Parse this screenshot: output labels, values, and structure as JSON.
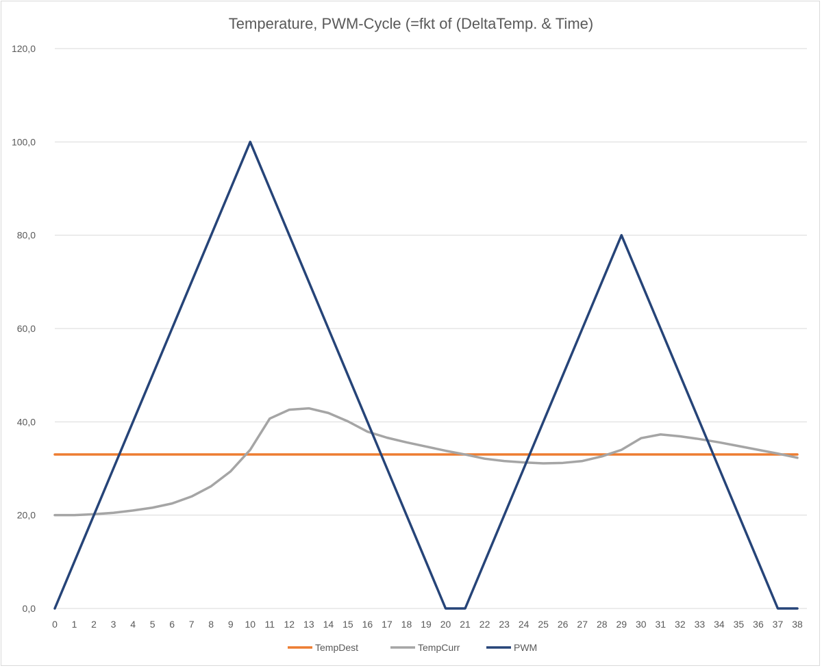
{
  "chart_data": {
    "type": "line",
    "title": "Temperature, PWM-Cycle (=fkt of (DeltaTemp. & Time)",
    "xlabel": "",
    "ylabel": "",
    "ylim": [
      0,
      120
    ],
    "ytick_step": 20,
    "y_tick_labels": [
      "0,0",
      "20,0",
      "40,0",
      "60,0",
      "80,0",
      "100,0",
      "120,0"
    ],
    "x": [
      0,
      1,
      2,
      3,
      4,
      5,
      6,
      7,
      8,
      9,
      10,
      11,
      12,
      13,
      14,
      15,
      16,
      17,
      18,
      19,
      20,
      21,
      22,
      23,
      24,
      25,
      26,
      27,
      28,
      29,
      30,
      31,
      32,
      33,
      34,
      35,
      36,
      37,
      38
    ],
    "grid": true,
    "legend_position": "bottom",
    "series": [
      {
        "name": "TempDest",
        "color": "#ed7d31",
        "values": [
          33,
          33,
          33,
          33,
          33,
          33,
          33,
          33,
          33,
          33,
          33,
          33,
          33,
          33,
          33,
          33,
          33,
          33,
          33,
          33,
          33,
          33,
          33,
          33,
          33,
          33,
          33,
          33,
          33,
          33,
          33,
          33,
          33,
          33,
          33,
          33,
          33,
          33,
          33
        ]
      },
      {
        "name": "TempCurr",
        "color": "#a5a5a5",
        "values": [
          20.0,
          20.0,
          20.2,
          20.5,
          21.0,
          21.6,
          22.5,
          24.0,
          26.2,
          29.4,
          34.0,
          40.7,
          42.6,
          42.9,
          41.9,
          40.1,
          37.9,
          36.6,
          35.6,
          34.7,
          33.8,
          33.0,
          32.1,
          31.6,
          31.3,
          31.1,
          31.2,
          31.6,
          32.6,
          34.0,
          36.5,
          37.3,
          36.9,
          36.3,
          35.6,
          34.8,
          34.0,
          33.2,
          32.3
        ]
      },
      {
        "name": "PWM",
        "color": "#264478",
        "values": [
          0,
          10,
          20,
          30,
          40,
          50,
          60,
          70,
          80,
          90,
          100,
          90,
          80,
          70,
          60,
          50,
          40,
          30,
          20,
          10,
          0,
          0,
          10,
          20,
          30,
          40,
          50,
          60,
          70,
          80,
          70,
          60,
          50,
          40,
          30,
          20,
          10,
          0,
          0
        ]
      }
    ]
  }
}
